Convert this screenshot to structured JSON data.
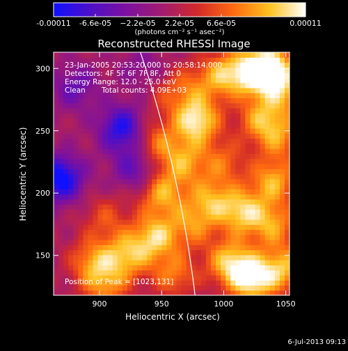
{
  "chart_data": {
    "type": "heatmap",
    "title": "Reconstructed RHESSI Image",
    "xlabel": "Heliocentric X (arcsec)",
    "ylabel": "Heliocentric Y (arcsec)",
    "xlim": [
      863,
      1053
    ],
    "ylim": [
      118,
      313
    ],
    "x_ticks": [
      900,
      950,
      1000,
      1050
    ],
    "y_ticks": [
      150,
      200,
      250,
      300
    ],
    "colorbar": {
      "ticks": [
        "-0.00011",
        "-6.6e-05",
        "−2.2e-05",
        "2.2e-05",
        "6.6e-05",
        "0.00011"
      ],
      "range": [
        -0.00011,
        0.00011
      ],
      "colors": [
        "#1010ff",
        "#4c10c8",
        "#7c10a0",
        "#a01c70",
        "#d22a2a",
        "#ff6a10",
        "#ffc220",
        "#ffffff"
      ],
      "unit_label": "(photons cm⁻² s⁻¹ asec⁻²)"
    },
    "annotations": {
      "time_range": "23-Jan-2005 20:53:20.000 to 20:58:14.000",
      "detectors": "Detectors: 4F 5F 6F 7F 8F, Att 0",
      "energy": "Energy Range: 12.0 - 25.0 keV",
      "method": "Clean",
      "counts": "Total counts: 4.09E+03",
      "peak": "Position of Peak = [1023,131]"
    },
    "blobs": [
      {
        "x": 868,
        "y": 212,
        "v": -0.00011
      },
      {
        "x": 918,
        "y": 252,
        "v": -9e-05
      },
      {
        "x": 930,
        "y": 220,
        "v": -6e-05
      },
      {
        "x": 880,
        "y": 285,
        "v": -5e-05
      },
      {
        "x": 905,
        "y": 180,
        "v": 4e-05
      },
      {
        "x": 895,
        "y": 145,
        "v": 7e-05
      },
      {
        "x": 905,
        "y": 125,
        "v": 6e-05
      },
      {
        "x": 922,
        "y": 150,
        "v": 8e-05
      },
      {
        "x": 945,
        "y": 165,
        "v": 9e-05
      },
      {
        "x": 950,
        "y": 200,
        "v": 8e-05
      },
      {
        "x": 968,
        "y": 225,
        "v": 7e-05
      },
      {
        "x": 945,
        "y": 240,
        "v": 6e-05
      },
      {
        "x": 978,
        "y": 258,
        "v": 0.00011
      },
      {
        "x": 1000,
        "y": 295,
        "v": 8e-05
      },
      {
        "x": 1025,
        "y": 298,
        "v": 0.00011
      },
      {
        "x": 1040,
        "y": 300,
        "v": 9e-05
      },
      {
        "x": 1030,
        "y": 260,
        "v": 7e-05
      },
      {
        "x": 1045,
        "y": 245,
        "v": 6e-05
      },
      {
        "x": 1000,
        "y": 225,
        "v": 5e-05
      },
      {
        "x": 1040,
        "y": 210,
        "v": 8e-05
      },
      {
        "x": 990,
        "y": 195,
        "v": 7e-05
      },
      {
        "x": 1015,
        "y": 185,
        "v": 9e-05
      },
      {
        "x": 1040,
        "y": 175,
        "v": 7e-05
      },
      {
        "x": 975,
        "y": 175,
        "v": 6e-05
      },
      {
        "x": 1005,
        "y": 145,
        "v": 9e-05
      },
      {
        "x": 1023,
        "y": 131,
        "v": 0.00011
      },
      {
        "x": 1048,
        "y": 140,
        "v": 8e-05
      },
      {
        "x": 960,
        "y": 135,
        "v": 6e-05
      },
      {
        "x": 975,
        "y": 285,
        "v": 4e-05
      },
      {
        "x": 1050,
        "y": 280,
        "v": 6e-05
      },
      {
        "x": 935,
        "y": 300,
        "v": -3e-05
      },
      {
        "x": 955,
        "y": 280,
        "v": 3e-05
      }
    ],
    "limb": {
      "center_x": 0,
      "center_y": 0,
      "radius": 984
    }
  },
  "footer_date": "6-Jul-2013 09:13"
}
